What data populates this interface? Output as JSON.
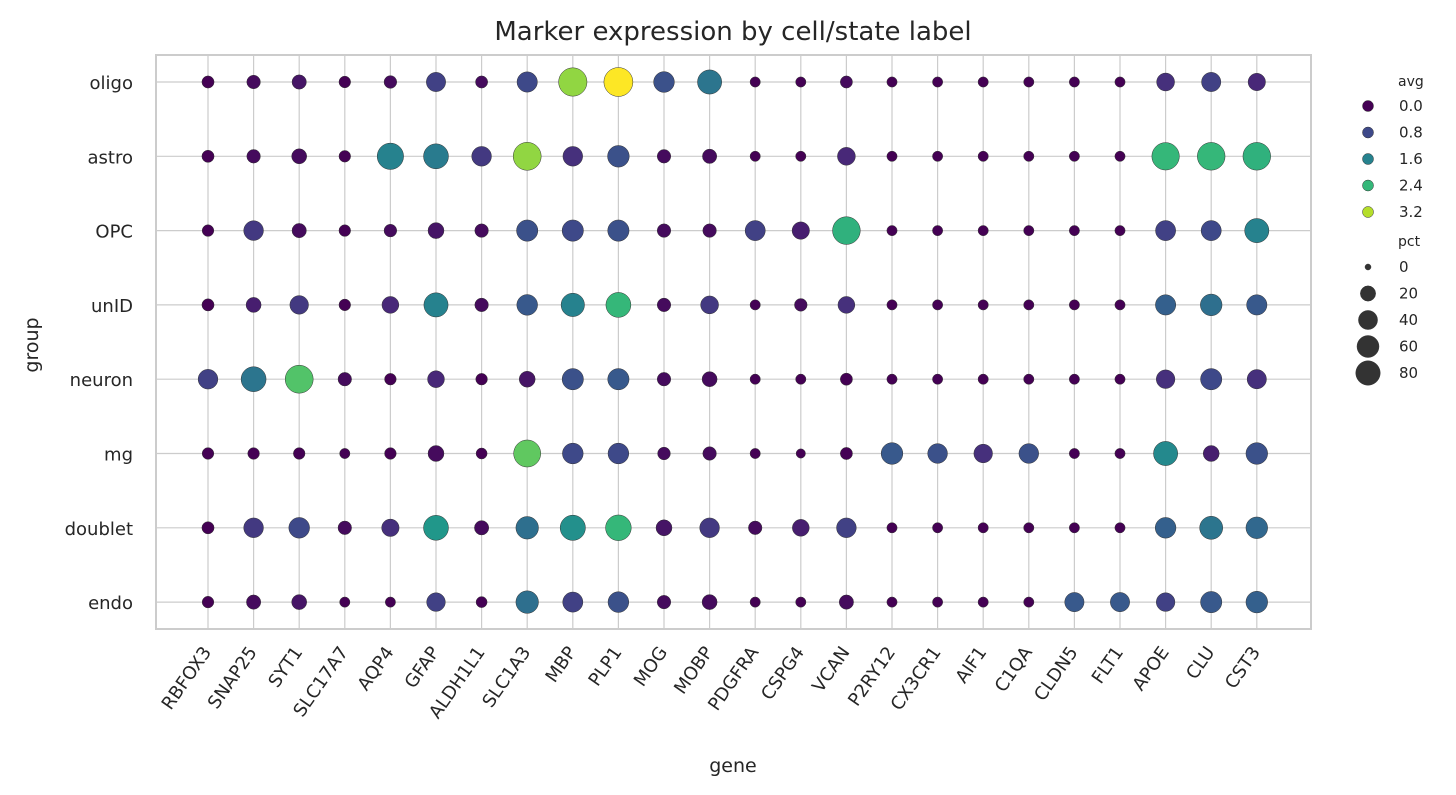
{
  "chart_data": {
    "type": "scatter",
    "title": "Marker expression by cell/state label",
    "xlabel": "gene",
    "ylabel": "group",
    "grid": true,
    "legend_position": "right",
    "genes": [
      "RBFOX3",
      "SNAP25",
      "SYT1",
      "SLC17A7",
      "AQP4",
      "GFAP",
      "ALDH1L1",
      "SLC1A3",
      "MBP",
      "PLP1",
      "MOG",
      "MOBP",
      "PDGFRA",
      "CSPG4",
      "VCAN",
      "P2RY12",
      "CX3CR1",
      "AIF1",
      "C1QA",
      "CLDN5",
      "FLT1",
      "APOE",
      "CLU",
      "CST3"
    ],
    "groups": [
      "oligo",
      "astro",
      "OPC",
      "unID",
      "neuron",
      "mg",
      "doublet",
      "endo"
    ],
    "avg": [
      [
        0.0,
        0.1,
        0.2,
        0.0,
        0.1,
        0.7,
        0.1,
        0.8,
        3.0,
        3.6,
        0.9,
        1.4,
        0.0,
        0.0,
        0.1,
        0.0,
        0.0,
        0.0,
        0.0,
        0.0,
        0.0,
        0.5,
        0.7,
        0.4
      ],
      [
        0.0,
        0.1,
        0.1,
        0.0,
        1.6,
        1.5,
        0.6,
        3.0,
        0.5,
        0.9,
        0.1,
        0.1,
        0.0,
        0.0,
        0.4,
        0.0,
        0.0,
        0.0,
        0.0,
        0.0,
        0.0,
        2.4,
        2.4,
        2.3
      ],
      [
        0.0,
        0.6,
        0.1,
        0.0,
        0.1,
        0.2,
        0.1,
        0.9,
        0.8,
        0.9,
        0.1,
        0.1,
        0.7,
        0.3,
        2.3,
        0.0,
        0.0,
        0.0,
        0.0,
        0.0,
        0.0,
        0.7,
        0.8,
        1.6
      ],
      [
        0.0,
        0.3,
        0.6,
        0.0,
        0.4,
        1.6,
        0.1,
        1.0,
        1.6,
        2.4,
        0.1,
        0.6,
        0.0,
        0.1,
        0.5,
        0.0,
        0.0,
        0.0,
        0.0,
        0.0,
        0.0,
        1.1,
        1.3,
        1.0
      ],
      [
        0.7,
        1.4,
        2.6,
        0.1,
        0.0,
        0.4,
        0.0,
        0.2,
        0.9,
        1.0,
        0.1,
        0.1,
        0.0,
        0.0,
        0.0,
        0.0,
        0.0,
        0.0,
        0.0,
        0.0,
        0.0,
        0.5,
        0.8,
        0.5
      ],
      [
        0.0,
        0.0,
        0.0,
        0.0,
        0.0,
        0.1,
        0.0,
        2.7,
        0.8,
        0.8,
        0.1,
        0.1,
        0.0,
        0.0,
        0.0,
        1.0,
        0.9,
        0.5,
        0.9,
        0.0,
        0.0,
        1.7,
        0.3,
        0.9
      ],
      [
        0.0,
        0.6,
        0.8,
        0.1,
        0.5,
        1.9,
        0.1,
        1.3,
        1.8,
        2.4,
        0.2,
        0.6,
        0.1,
        0.3,
        0.7,
        0.0,
        0.0,
        0.0,
        0.0,
        0.0,
        0.0,
        1.1,
        1.4,
        1.2
      ],
      [
        0.0,
        0.1,
        0.2,
        0.0,
        0.0,
        0.7,
        0.0,
        1.3,
        0.7,
        0.9,
        0.1,
        0.1,
        0.0,
        0.0,
        0.1,
        0.0,
        0.0,
        0.0,
        0.0,
        1.0,
        1.0,
        0.7,
        1.0,
        1.1
      ]
    ],
    "pct": [
      [
        5,
        8,
        10,
        4,
        6,
        28,
        5,
        33,
        85,
        90,
        35,
        55,
        2,
        2,
        5,
        2,
        2,
        2,
        2,
        2,
        2,
        22,
        28,
        20
      ],
      [
        5,
        8,
        12,
        4,
        70,
        60,
        30,
        82,
        30,
        40,
        8,
        10,
        2,
        2,
        22,
        2,
        2,
        2,
        2,
        2,
        2,
        78,
        80,
        80
      ],
      [
        4,
        30,
        10,
        4,
        6,
        15,
        8,
        38,
        38,
        38,
        8,
        8,
        32,
        20,
        80,
        2,
        2,
        2,
        2,
        2,
        2,
        32,
        32,
        55
      ],
      [
        5,
        12,
        25,
        4,
        18,
        55,
        8,
        35,
        50,
        60,
        8,
        22,
        2,
        6,
        18,
        2,
        2,
        2,
        2,
        2,
        2,
        33,
        40,
        33
      ],
      [
        30,
        60,
        82,
        8,
        4,
        18,
        4,
        15,
        38,
        38,
        8,
        12,
        2,
        2,
        5,
        2,
        2,
        2,
        2,
        2,
        2,
        25,
        38,
        28
      ],
      [
        4,
        4,
        4,
        2,
        4,
        15,
        3,
        75,
        35,
        35,
        6,
        8,
        2,
        1,
        5,
        40,
        30,
        25,
        30,
        2,
        2,
        55,
        15,
        40
      ],
      [
        5,
        30,
        35,
        8,
        20,
        60,
        10,
        45,
        62,
        65,
        15,
        30,
        8,
        18,
        30,
        2,
        2,
        2,
        2,
        2,
        2,
        35,
        48,
        40
      ],
      [
        4,
        10,
        12,
        2,
        2,
        25,
        3,
        45,
        32,
        35,
        8,
        12,
        2,
        2,
        10,
        2,
        2,
        2,
        2,
        28,
        28,
        25,
        38,
        40
      ]
    ],
    "legend_avg": {
      "title": "avg",
      "labels": [
        "0.0",
        "0.8",
        "1.6",
        "2.4",
        "3.2"
      ],
      "values": [
        0.0,
        0.8,
        1.6,
        2.4,
        3.2
      ]
    },
    "legend_pct": {
      "title": "pct",
      "labels": [
        "0",
        "20",
        "40",
        "60",
        "80"
      ],
      "values": [
        0,
        20,
        40,
        60,
        80
      ]
    },
    "color_range": [
      0,
      3.6
    ],
    "colormap": [
      "#440154",
      "#482878",
      "#3e4989",
      "#31688e",
      "#26828e",
      "#1f9e89",
      "#35b779",
      "#6ece58",
      "#b5de2b",
      "#fde725"
    ],
    "marker_edge": "#333333"
  }
}
